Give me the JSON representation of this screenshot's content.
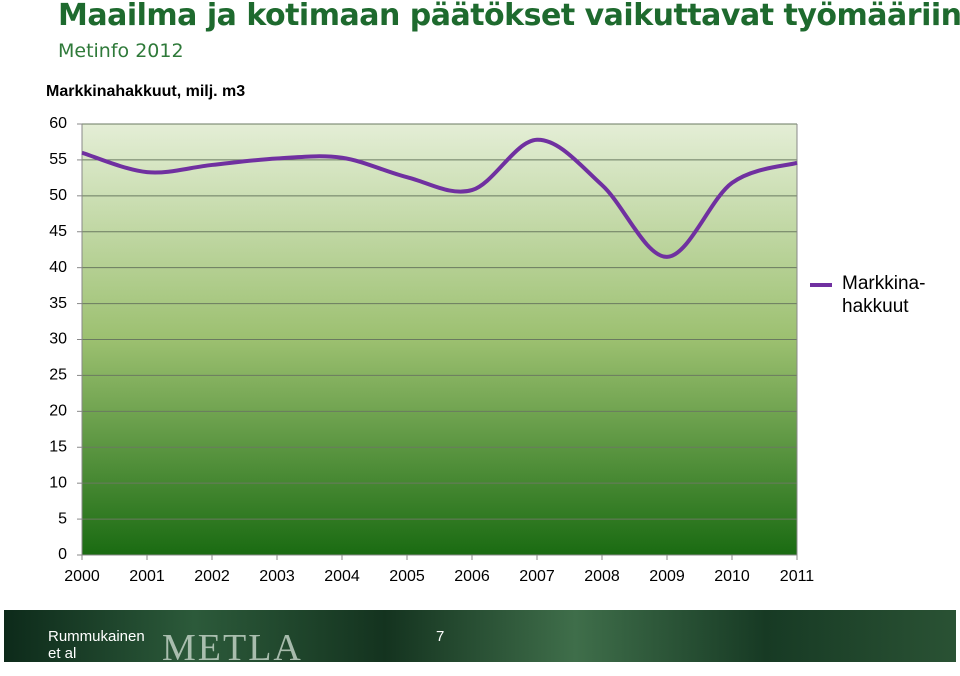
{
  "header": {
    "title": "Maailma ja kotimaan päätökset vaikuttavat työmääriin",
    "subtitle": "Metinfo 2012"
  },
  "chart_data": {
    "type": "line",
    "title": "Markkinahakkuut, milj. m3",
    "categories": [
      "2000",
      "2001",
      "2002",
      "2003",
      "2004",
      "2005",
      "2006",
      "2007",
      "2008",
      "2009",
      "2010",
      "2011"
    ],
    "series": [
      {
        "name": "Markkina-hakkuut",
        "color": "#7030a0",
        "values": [
          56.0,
          53.3,
          54.3,
          55.2,
          55.3,
          52.6,
          50.8,
          57.8,
          51.5,
          41.5,
          51.8,
          54.6
        ]
      }
    ],
    "ylim": [
      0,
      60
    ],
    "yticks": [
      0,
      5,
      10,
      15,
      20,
      25,
      30,
      35,
      40,
      45,
      50,
      55,
      60
    ],
    "grid": true,
    "legend": "right",
    "smooth": true
  },
  "footer": {
    "author": "Rummukainen et al",
    "page": "7",
    "logo": "METLA"
  }
}
